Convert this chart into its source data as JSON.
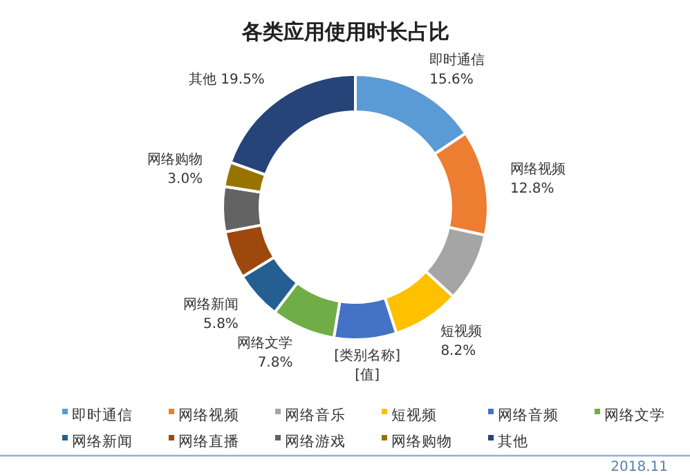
{
  "chart_data": {
    "type": "donut",
    "title": "各类应用使用时长占比",
    "categories": [
      "即时通信",
      "网络视频",
      "网络音乐",
      "短视频",
      "网络音频",
      "网络文学",
      "网络新闻",
      "网络直播",
      "网络游戏",
      "网络购物",
      "其他"
    ],
    "values": [
      15.6,
      12.8,
      8.4,
      8.2,
      7.6,
      7.8,
      5.8,
      5.8,
      5.5,
      3.0,
      19.5
    ],
    "colors": [
      "#5b9bd5",
      "#ed7d31",
      "#a5a5a5",
      "#ffc000",
      "#4472c4",
      "#70ad47",
      "#255e91",
      "#9e480e",
      "#636363",
      "#997300",
      "#264478"
    ],
    "value_labels": [
      "即时通信\n15.6%",
      "网络视频\n12.8%",
      null,
      "短视频\n8.2%",
      "[类别名称]\n[值]",
      "网络文学\n7.8%",
      "网络新闻\n5.8%",
      null,
      null,
      "网络购物\n3.0%",
      "其他 19.5%"
    ],
    "legend": "bottom",
    "annotations": [
      "2018.11"
    ]
  }
}
